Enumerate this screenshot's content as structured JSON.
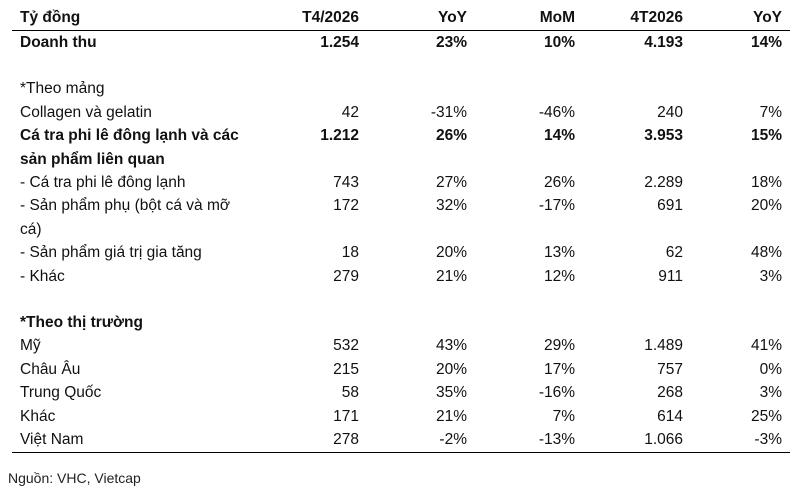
{
  "table": {
    "headers": [
      "Tỷ đồng",
      "T4/2026",
      "YoY",
      "MoM",
      "4T2026",
      "YoY"
    ],
    "revenue_row": [
      "Doanh thu",
      "1.254",
      "23%",
      "10%",
      "4.193",
      "14%"
    ],
    "segment_heading": "*Theo mảng",
    "segment_rows": [
      [
        "Collagen và gelatin",
        "42",
        "-31%",
        "-46%",
        "240",
        "7%"
      ],
      [
        "Cá tra phi lê đông lạnh và các sản phẩm liên quan",
        "1.212",
        "26%",
        "14%",
        "3.953",
        "15%"
      ],
      [
        "- Cá tra phi lê đông lạnh",
        "743",
        "27%",
        "26%",
        "2.289",
        "18%"
      ],
      [
        "- Sản phẩm phụ (bột cá và mỡ cá)",
        "172",
        "32%",
        "-17%",
        "691",
        "20%"
      ],
      [
        "- Sản phẩm giá trị gia tăng",
        "18",
        "20%",
        "13%",
        "62",
        "48%"
      ],
      [
        "- Khác",
        "279",
        "21%",
        "12%",
        "911",
        "3%"
      ]
    ],
    "market_heading": "*Theo thị trường",
    "market_rows": [
      [
        "Mỹ",
        "532",
        "43%",
        "29%",
        "1.489",
        "41%"
      ],
      [
        "Châu Âu",
        "215",
        "20%",
        "17%",
        "757",
        "0%"
      ],
      [
        "Trung Quốc",
        "58",
        "35%",
        "-16%",
        "268",
        "3%"
      ],
      [
        "Khác",
        "171",
        "21%",
        "7%",
        "614",
        "25%"
      ],
      [
        "Việt Nam",
        "278",
        "-2%",
        "-13%",
        "1.066",
        "-3%"
      ]
    ]
  },
  "source_note": "Nguồn: VHC, Vietcap"
}
